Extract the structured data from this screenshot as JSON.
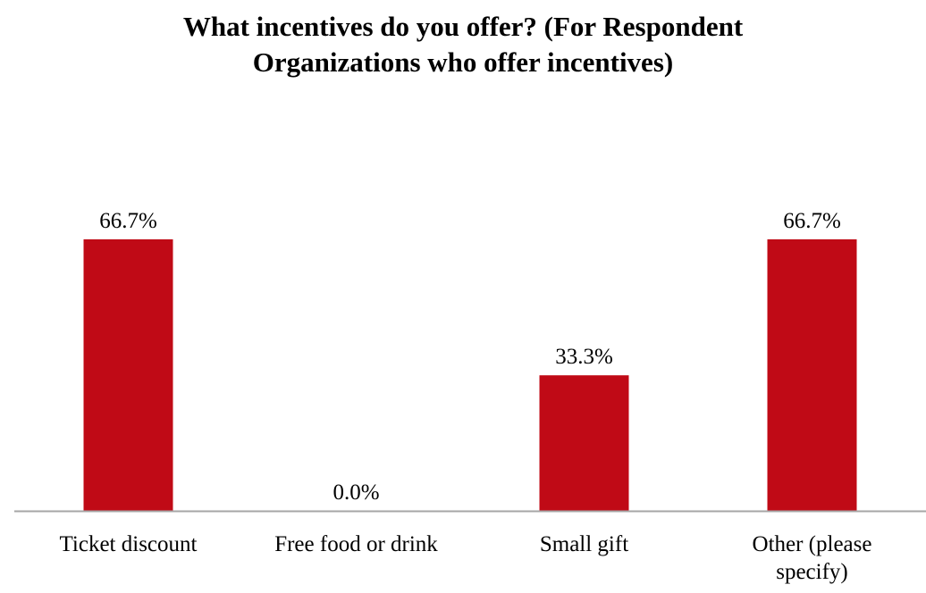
{
  "chart_data": {
    "type": "bar",
    "title_lines": [
      "What incentives do you offer? (For Respondent",
      "Organizations who offer incentives)"
    ],
    "categories": [
      [
        "Ticket discount"
      ],
      [
        "Free food or drink"
      ],
      [
        "Small gift"
      ],
      [
        "Other (please",
        "specify)"
      ]
    ],
    "values": [
      66.7,
      0.0,
      33.3,
      66.7
    ],
    "data_labels": [
      "66.7%",
      "0.0%",
      "33.3%",
      "66.7%"
    ],
    "ylim": [
      0,
      100
    ],
    "grid": false,
    "legend": "none",
    "bar_color": "#C00A16",
    "axis_color": "#A6A6A6"
  }
}
